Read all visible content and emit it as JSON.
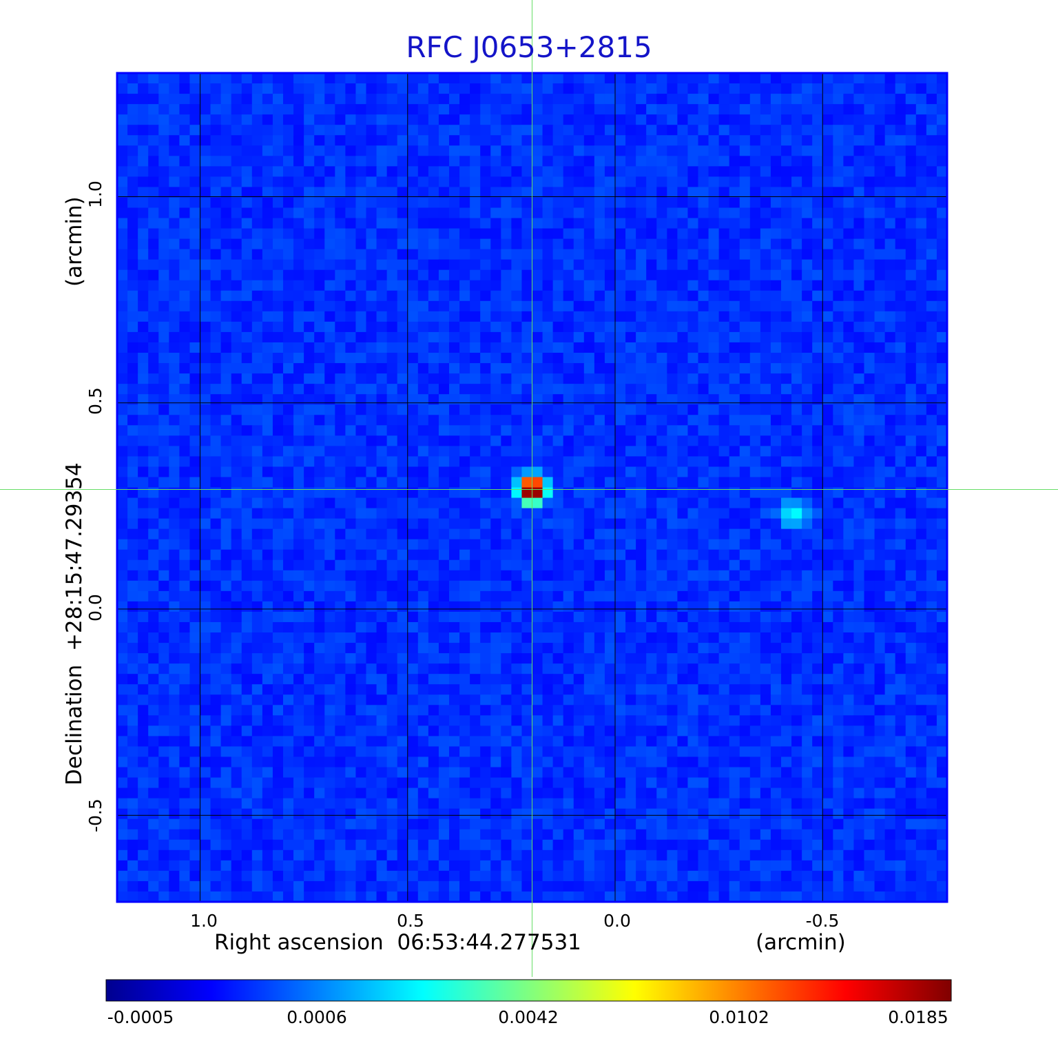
{
  "chart_data": {
    "type": "heatmap",
    "title": "RFC J0653+2815",
    "xlabel": "Right ascension  06:53:44.277531",
    "xunit": "(arcmin)",
    "ylabel": "Declination  +28:15:47.29354",
    "yunit": "(arcmin)",
    "x_range": [
      1.2,
      -0.8
    ],
    "y_range": [
      -0.71,
      1.3
    ],
    "x_ticks": [
      "1.0",
      "0.5",
      "0.0",
      "-0.5"
    ],
    "x_tick_values": [
      1.0,
      0.5,
      0.0,
      -0.5
    ],
    "y_ticks": [
      "1.0",
      "0.5",
      "0.0",
      "-0.5"
    ],
    "y_tick_values": [
      1.0,
      0.5,
      0.0,
      -0.5
    ],
    "grid": true,
    "crosshair": {
      "x": 0.2,
      "y": 0.29,
      "color": "#66dd66"
    },
    "colormap": "jet",
    "colorbar": {
      "ticks": [
        "-0.0005",
        "0.0006",
        "0.0042",
        "0.0102",
        "0.0185"
      ],
      "min": -0.0005,
      "max": 0.0185
    },
    "sources": [
      {
        "x": 0.2,
        "y": 0.29,
        "peak": 0.0185
      },
      {
        "x": -0.43,
        "y": 0.23,
        "peak": 0.0042
      }
    ]
  }
}
